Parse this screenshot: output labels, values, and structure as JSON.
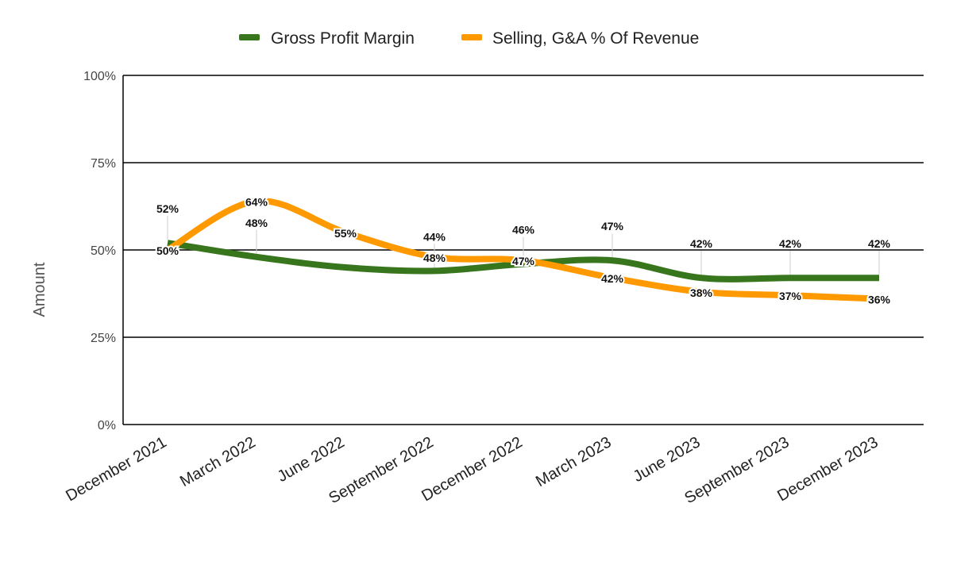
{
  "chart_data": {
    "type": "line",
    "title": "",
    "xlabel": "",
    "ylabel": "Amount",
    "ylim": [
      0,
      100
    ],
    "y_ticks": [
      "0%",
      "25%",
      "50%",
      "75%",
      "100%"
    ],
    "y_tick_values": [
      0,
      25,
      50,
      75,
      100
    ],
    "grid": true,
    "smooth": true,
    "legend_position": "top",
    "categories": [
      "December 2021",
      "March 2022",
      "June 2022",
      "September 2022",
      "December 2022",
      "March 2023",
      "June 2023",
      "September 2023",
      "December 2023"
    ],
    "series": [
      {
        "name": "Gross Profit Margin",
        "color": "#38761d",
        "values": [
          52,
          48,
          45,
          44,
          46,
          47,
          42,
          42,
          42
        ],
        "labels": [
          "52%",
          "48%",
          "",
          "44%",
          "46%",
          "47%",
          "42%",
          "42%",
          "42%"
        ]
      },
      {
        "name": "Selling, G&A % Of Revenue",
        "color": "#ff9900",
        "values": [
          50,
          64,
          55,
          48,
          47,
          42,
          38,
          37,
          36
        ],
        "labels": [
          "50%",
          "64%",
          "55%",
          "48%",
          "47%",
          "42%",
          "38%",
          "37%",
          "36%"
        ]
      }
    ]
  }
}
